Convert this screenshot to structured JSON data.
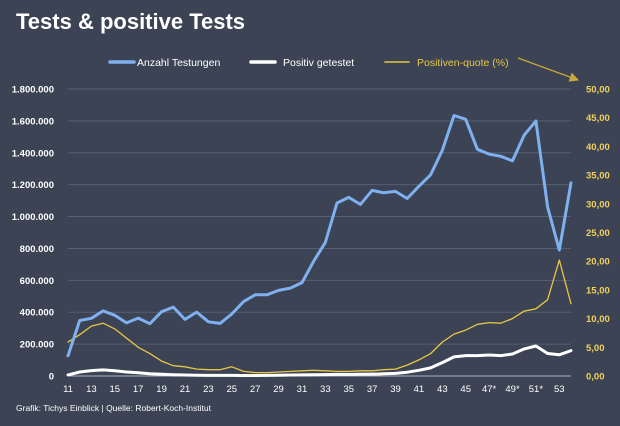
{
  "chart_data": {
    "type": "line",
    "title": "Tests & positive Tests",
    "source": "Grafik: Tichys Einblick | Quelle: Robert-Koch-Institut",
    "x": [
      11,
      12,
      13,
      14,
      15,
      16,
      17,
      18,
      19,
      20,
      21,
      22,
      23,
      24,
      25,
      26,
      27,
      28,
      29,
      30,
      31,
      32,
      33,
      34,
      35,
      36,
      37,
      38,
      39,
      40,
      41,
      42,
      43,
      44,
      45,
      46,
      47,
      48,
      49,
      50,
      51,
      52,
      53,
      54
    ],
    "x_tick_labels": [
      "11",
      "13",
      "15",
      "17",
      "19",
      "21",
      "23",
      "25",
      "27",
      "29",
      "31",
      "33",
      "35",
      "37",
      "39",
      "41",
      "43",
      "45",
      "47*",
      "49*",
      "51*",
      "53"
    ],
    "y_left": {
      "ylim": [
        0,
        1800000
      ],
      "tick_values": [
        0,
        200000,
        400000,
        600000,
        800000,
        1000000,
        1200000,
        1400000,
        1600000,
        1800000
      ],
      "tick_labels": [
        "0",
        "200.000",
        "400.000",
        "600.000",
        "800.000",
        "1.000.000",
        "1.200.000",
        "1.400.000",
        "1.600.000",
        "1.800.000"
      ]
    },
    "y_right": {
      "ylim": [
        0,
        50
      ],
      "tick_values": [
        0,
        5,
        10,
        15,
        20,
        25,
        30,
        35,
        40,
        45,
        50
      ],
      "tick_labels": [
        "0,00",
        "5,00",
        "10,00",
        "15,00",
        "20,00",
        "25,00",
        "30,00",
        "35,00",
        "40,00",
        "45,00",
        "50,00"
      ]
    },
    "grid": "horizontal",
    "legend_position": "top",
    "series": [
      {
        "name": "Anzahl Testungen",
        "axis": "left",
        "color": "#7fb0ef",
        "values": [
          127000,
          348000,
          362000,
          408000,
          381000,
          333000,
          363000,
          328000,
          403000,
          432000,
          355000,
          401000,
          340000,
          330000,
          389000,
          466000,
          509000,
          509000,
          537000,
          551000,
          586000,
          720000,
          837000,
          1085000,
          1120000,
          1076000,
          1164000,
          1149000,
          1158000,
          1113000,
          1190000,
          1262000,
          1415000,
          1634000,
          1610000,
          1422000,
          1392000,
          1378000,
          1350000,
          1511000,
          1599000,
          1060000,
          790000,
          1212000
        ]
      },
      {
        "name": "Positiv getestet",
        "axis": "left",
        "color": "#ffffff",
        "values": [
          7000,
          25000,
          34000,
          38000,
          33000,
          25000,
          21000,
          14000,
          11000,
          8000,
          6000,
          5000,
          4000,
          4000,
          4000,
          3000,
          3000,
          4000,
          5000,
          6000,
          7000,
          8000,
          9000,
          10000,
          10000,
          11000,
          12000,
          14000,
          16000,
          24000,
          36000,
          51000,
          84000,
          120000,
          128000,
          128000,
          132000,
          128000,
          138000,
          170000,
          188000,
          141000,
          133000,
          159000
        ]
      },
      {
        "name": "Positiven-quote (%)",
        "axis": "right",
        "color": "#e8c643",
        "values": [
          5.9,
          7.2,
          8.7,
          9.2,
          8.2,
          6.6,
          5.0,
          3.9,
          2.6,
          1.8,
          1.6,
          1.2,
          1.1,
          1.1,
          1.6,
          0.8,
          0.6,
          0.6,
          0.7,
          0.8,
          0.9,
          1.0,
          0.9,
          0.8,
          0.8,
          0.9,
          0.9,
          1.1,
          1.2,
          1.9,
          2.8,
          3.9,
          5.9,
          7.3,
          8.0,
          9.0,
          9.3,
          9.2,
          10.0,
          11.3,
          11.7,
          13.3,
          20.2,
          12.6
        ]
      }
    ]
  }
}
